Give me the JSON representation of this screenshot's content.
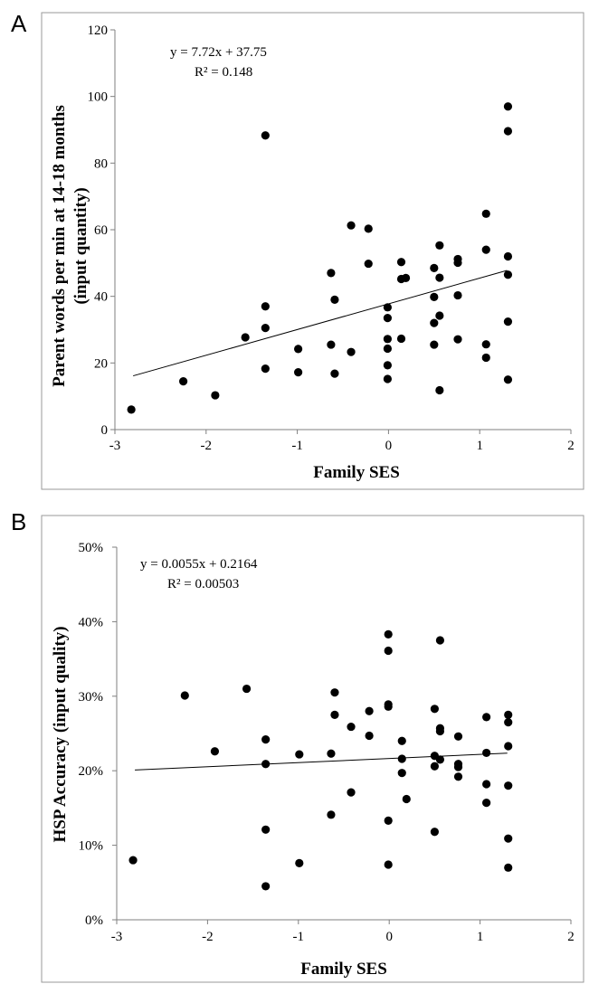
{
  "chart_data": [
    {
      "type": "scatter",
      "panel_label": "A",
      "xlabel": "Family SES",
      "ylabel": "Parent words per min at 14-18 months",
      "ylabel2": "(input quantity)",
      "xlim": [
        -3,
        2
      ],
      "ylim": [
        0,
        120
      ],
      "x_ticks": [
        -3,
        -2,
        -1,
        0,
        1,
        2
      ],
      "y_ticks": [
        0,
        20,
        40,
        60,
        80,
        100,
        120
      ],
      "x_tick_labels": [
        "-3",
        "-2",
        "-1",
        "0",
        "1",
        "2"
      ],
      "y_tick_labels": [
        "0",
        "20",
        "40",
        "60",
        "80",
        "100",
        "120"
      ],
      "equation": "y = 7.72x + 37.75",
      "r_squared": "R² = 0.148",
      "trendline": {
        "slope": 7.72,
        "intercept": 37.75,
        "x_range": [
          -2.8,
          1.3
        ]
      },
      "grid": false,
      "points": [
        [
          -2.82,
          6
        ],
        [
          -2.25,
          14.5
        ],
        [
          -1.9,
          10.3
        ],
        [
          -1.57,
          27.7
        ],
        [
          -1.35,
          88.3
        ],
        [
          -1.35,
          37
        ],
        [
          -1.35,
          30.5
        ],
        [
          -1.35,
          18.3
        ],
        [
          -0.99,
          24.2
        ],
        [
          -0.99,
          17.2
        ],
        [
          -0.63,
          47
        ],
        [
          -0.63,
          25.5
        ],
        [
          -0.59,
          39
        ],
        [
          -0.59,
          16.8
        ],
        [
          -0.41,
          61.3
        ],
        [
          -0.41,
          23.3
        ],
        [
          -0.22,
          60.3
        ],
        [
          -0.22,
          49.8
        ],
        [
          -0.01,
          36.7
        ],
        [
          -0.01,
          33.5
        ],
        [
          -0.01,
          27.2
        ],
        [
          -0.01,
          24.3
        ],
        [
          -0.01,
          19.3
        ],
        [
          -0.01,
          15.2
        ],
        [
          0.14,
          50.3
        ],
        [
          0.14,
          45.2
        ],
        [
          0.14,
          27.3
        ],
        [
          0.19,
          45.5
        ],
        [
          0.5,
          48.5
        ],
        [
          0.5,
          39.8
        ],
        [
          0.5,
          32
        ],
        [
          0.5,
          25.5
        ],
        [
          0.56,
          55.3
        ],
        [
          0.56,
          45.6
        ],
        [
          0.56,
          34.2
        ],
        [
          0.56,
          11.8
        ],
        [
          0.76,
          51.2
        ],
        [
          0.76,
          50.1
        ],
        [
          0.76,
          40.3
        ],
        [
          0.76,
          27.1
        ],
        [
          1.07,
          64.8
        ],
        [
          1.07,
          54
        ],
        [
          1.07,
          25.6
        ],
        [
          1.07,
          21.6
        ],
        [
          1.31,
          97
        ],
        [
          1.31,
          89.6
        ],
        [
          1.31,
          52
        ],
        [
          1.31,
          46.5
        ],
        [
          1.31,
          32.4
        ],
        [
          1.31,
          15
        ]
      ]
    },
    {
      "type": "scatter",
      "panel_label": "B",
      "xlabel": "Family SES",
      "ylabel": "HSP Accuracy (input quality)",
      "xlim": [
        -3,
        2
      ],
      "ylim": [
        0,
        0.5
      ],
      "x_ticks": [
        -3,
        -2,
        -1,
        0,
        1,
        2
      ],
      "y_ticks": [
        0,
        0.1,
        0.2,
        0.3,
        0.4,
        0.5
      ],
      "x_tick_labels": [
        "-3",
        "-2",
        "-1",
        "0",
        "1",
        "2"
      ],
      "y_tick_labels": [
        "0%",
        "10%",
        "20%",
        "30%",
        "40%",
        "50%"
      ],
      "equation": "y = 0.0055x + 0.2164",
      "r_squared": "R² = 0.00503",
      "trendline": {
        "slope": 0.0055,
        "intercept": 0.2164,
        "x_range": [
          -2.8,
          1.3
        ]
      },
      "grid": false,
      "points": [
        [
          -2.82,
          0.08
        ],
        [
          -2.25,
          0.301
        ],
        [
          -1.92,
          0.226
        ],
        [
          -1.57,
          0.31
        ],
        [
          -1.36,
          0.242
        ],
        [
          -1.36,
          0.209
        ],
        [
          -1.36,
          0.121
        ],
        [
          -1.36,
          0.045
        ],
        [
          -0.99,
          0.222
        ],
        [
          -0.99,
          0.076
        ],
        [
          -0.64,
          0.223
        ],
        [
          -0.64,
          0.141
        ],
        [
          -0.6,
          0.305
        ],
        [
          -0.6,
          0.275
        ],
        [
          -0.42,
          0.259
        ],
        [
          -0.42,
          0.171
        ],
        [
          -0.22,
          0.28
        ],
        [
          -0.22,
          0.247
        ],
        [
          -0.01,
          0.383
        ],
        [
          -0.01,
          0.361
        ],
        [
          -0.01,
          0.289
        ],
        [
          -0.01,
          0.286
        ],
        [
          -0.01,
          0.133
        ],
        [
          -0.01,
          0.074
        ],
        [
          0.14,
          0.24
        ],
        [
          0.14,
          0.216
        ],
        [
          0.14,
          0.197
        ],
        [
          0.19,
          0.162
        ],
        [
          0.5,
          0.283
        ],
        [
          0.5,
          0.22
        ],
        [
          0.5,
          0.206
        ],
        [
          0.5,
          0.118
        ],
        [
          0.56,
          0.375
        ],
        [
          0.56,
          0.257
        ],
        [
          0.56,
          0.253
        ],
        [
          0.56,
          0.215
        ],
        [
          0.76,
          0.246
        ],
        [
          0.76,
          0.209
        ],
        [
          0.76,
          0.205
        ],
        [
          0.76,
          0.192
        ],
        [
          1.07,
          0.272
        ],
        [
          1.07,
          0.224
        ],
        [
          1.07,
          0.182
        ],
        [
          1.07,
          0.157
        ],
        [
          1.31,
          0.275
        ],
        [
          1.31,
          0.265
        ],
        [
          1.31,
          0.233
        ],
        [
          1.31,
          0.18
        ],
        [
          1.31,
          0.109
        ],
        [
          1.31,
          0.07
        ]
      ]
    }
  ]
}
